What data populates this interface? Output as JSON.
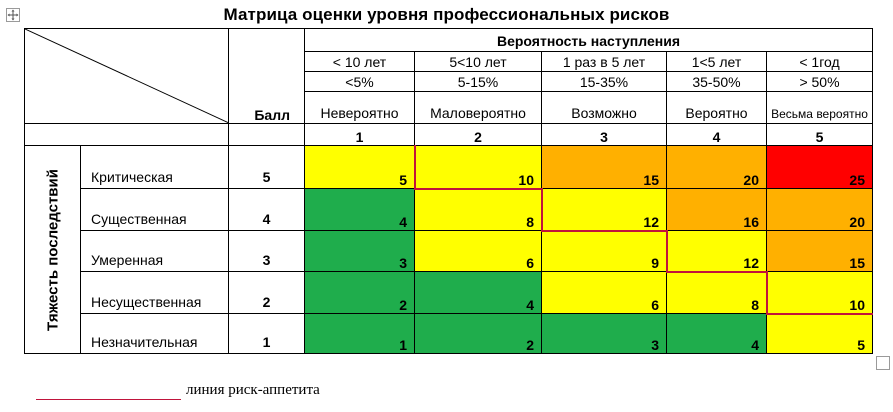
{
  "title": "Матрица оценки уровня профессиональных рисков",
  "probability_header": "Вероятность наступления",
  "frequency": [
    "< 10 лет",
    "5<10 лет",
    "1 раз в 5 лет",
    "1<5 лет",
    "< 1год"
  ],
  "percent": [
    "<5%",
    "5-15%",
    "15-35%",
    "35-50%",
    "> 50%"
  ],
  "likelihood": [
    "Невероятно",
    "Маловероятно",
    "Возможно",
    "Вероятно",
    "Весьма вероятно"
  ],
  "score_label": "Балл",
  "column_scores": [
    "1",
    "2",
    "3",
    "4",
    "5"
  ],
  "severity_header": "Тяжесть последствий",
  "rows": [
    {
      "label": "Критическая",
      "score": "5",
      "cells": [
        "5",
        "10",
        "15",
        "20",
        "25"
      ]
    },
    {
      "label": "Существенная",
      "score": "4",
      "cells": [
        "4",
        "8",
        "12",
        "16",
        "20"
      ]
    },
    {
      "label": "Умеренная",
      "score": "3",
      "cells": [
        "3",
        "6",
        "9",
        "12",
        "15"
      ]
    },
    {
      "label": "Несущественная",
      "score": "2",
      "cells": [
        "2",
        "4",
        "6",
        "8",
        "10"
      ]
    },
    {
      "label": "Незначительная",
      "score": "1",
      "cells": [
        "1",
        "2",
        "3",
        "4",
        "5"
      ]
    }
  ],
  "colors": {
    "green": "#1fad4c",
    "yellow": "#ffff00",
    "orange": "#ffb000",
    "red": "#ff0000",
    "appetite_line": "#c0143c"
  },
  "legend": {
    "text": "линия риск-аппетита"
  }
}
